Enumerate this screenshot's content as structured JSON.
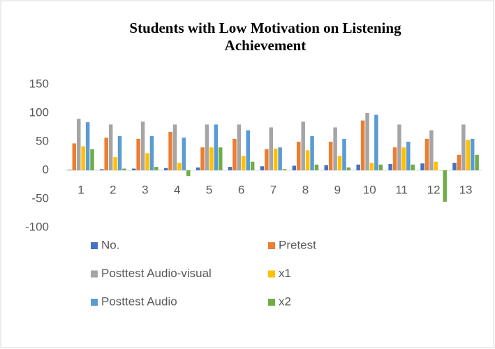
{
  "chart_data": {
    "type": "bar",
    "title": "Students with Low Motivation on Listening Achievement",
    "categories": [
      "1",
      "2",
      "3",
      "4",
      "5",
      "6",
      "7",
      "8",
      "9",
      "10",
      "11",
      "12",
      "13"
    ],
    "series": [
      {
        "name": "No.",
        "color": "#4472c4",
        "values": [
          1,
          2,
          3,
          4,
          5,
          6,
          7,
          8,
          9,
          10,
          11,
          12,
          13
        ]
      },
      {
        "name": "Pretest",
        "color": "#ed7d31",
        "values": [
          47,
          57,
          55,
          67,
          40,
          55,
          37,
          50,
          50,
          87,
          40,
          55,
          27
        ]
      },
      {
        "name": "Posttest Audio-visual",
        "color": "#a5a5a5",
        "values": [
          90,
          80,
          85,
          80,
          80,
          80,
          75,
          85,
          75,
          100,
          80,
          70,
          80
        ]
      },
      {
        "name": "x1",
        "color": "#ffc000",
        "values": [
          42,
          23,
          30,
          13,
          40,
          25,
          38,
          35,
          25,
          13,
          40,
          15,
          53
        ]
      },
      {
        "name": "Posttest Audio",
        "color": "#5b9bd5",
        "values": [
          84,
          60,
          60,
          57,
          80,
          70,
          40,
          60,
          55,
          97,
          50,
          0,
          55
        ]
      },
      {
        "name": "x2",
        "color": "#70ad47",
        "values": [
          37,
          3,
          6,
          -10,
          40,
          15,
          2,
          10,
          5,
          10,
          10,
          -55,
          27
        ]
      }
    ],
    "ylim": [
      -100,
      150
    ],
    "yticks": [
      -100,
      -50,
      0,
      50,
      100,
      150
    ],
    "grid": false
  }
}
